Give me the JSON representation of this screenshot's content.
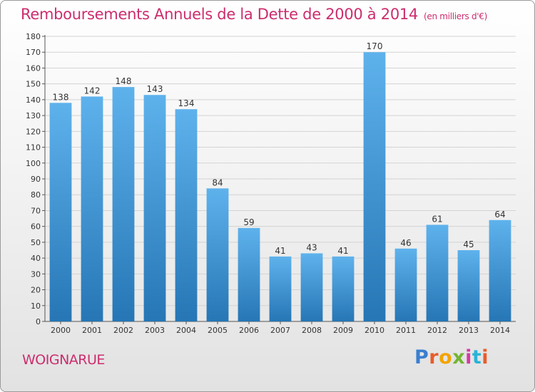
{
  "header": {
    "title": "Remboursements Annuels de la Dette de 2000 à 2014",
    "unit": "(en milliers d'€)"
  },
  "commune": "WOIGNARUE",
  "logo": {
    "text": "Proxiti",
    "colors": [
      "#3a7fd0",
      "#e85c2c",
      "#f2a400",
      "#72b632",
      "#d63aa0",
      "#2bb3d6",
      "#e85c2c"
    ]
  },
  "colors": {
    "accent": "#cc2d6e",
    "bar_light": "#5eb2ec",
    "bar_dark": "#2676b5"
  },
  "chart_data": {
    "type": "bar",
    "title": "Remboursements Annuels de la Dette de 2000 à 2014",
    "categories": [
      "2000",
      "2001",
      "2002",
      "2003",
      "2004",
      "2005",
      "2006",
      "2007",
      "2008",
      "2009",
      "2010",
      "2011",
      "2012",
      "2013",
      "2014"
    ],
    "values": [
      138,
      142,
      148,
      143,
      134,
      84,
      59,
      41,
      43,
      41,
      170,
      46,
      61,
      45,
      64
    ],
    "ylim": [
      0,
      180
    ],
    "yticks": [
      0,
      10,
      20,
      30,
      40,
      50,
      60,
      70,
      80,
      90,
      100,
      110,
      120,
      130,
      140,
      150,
      160,
      170,
      180
    ],
    "grid": true
  }
}
